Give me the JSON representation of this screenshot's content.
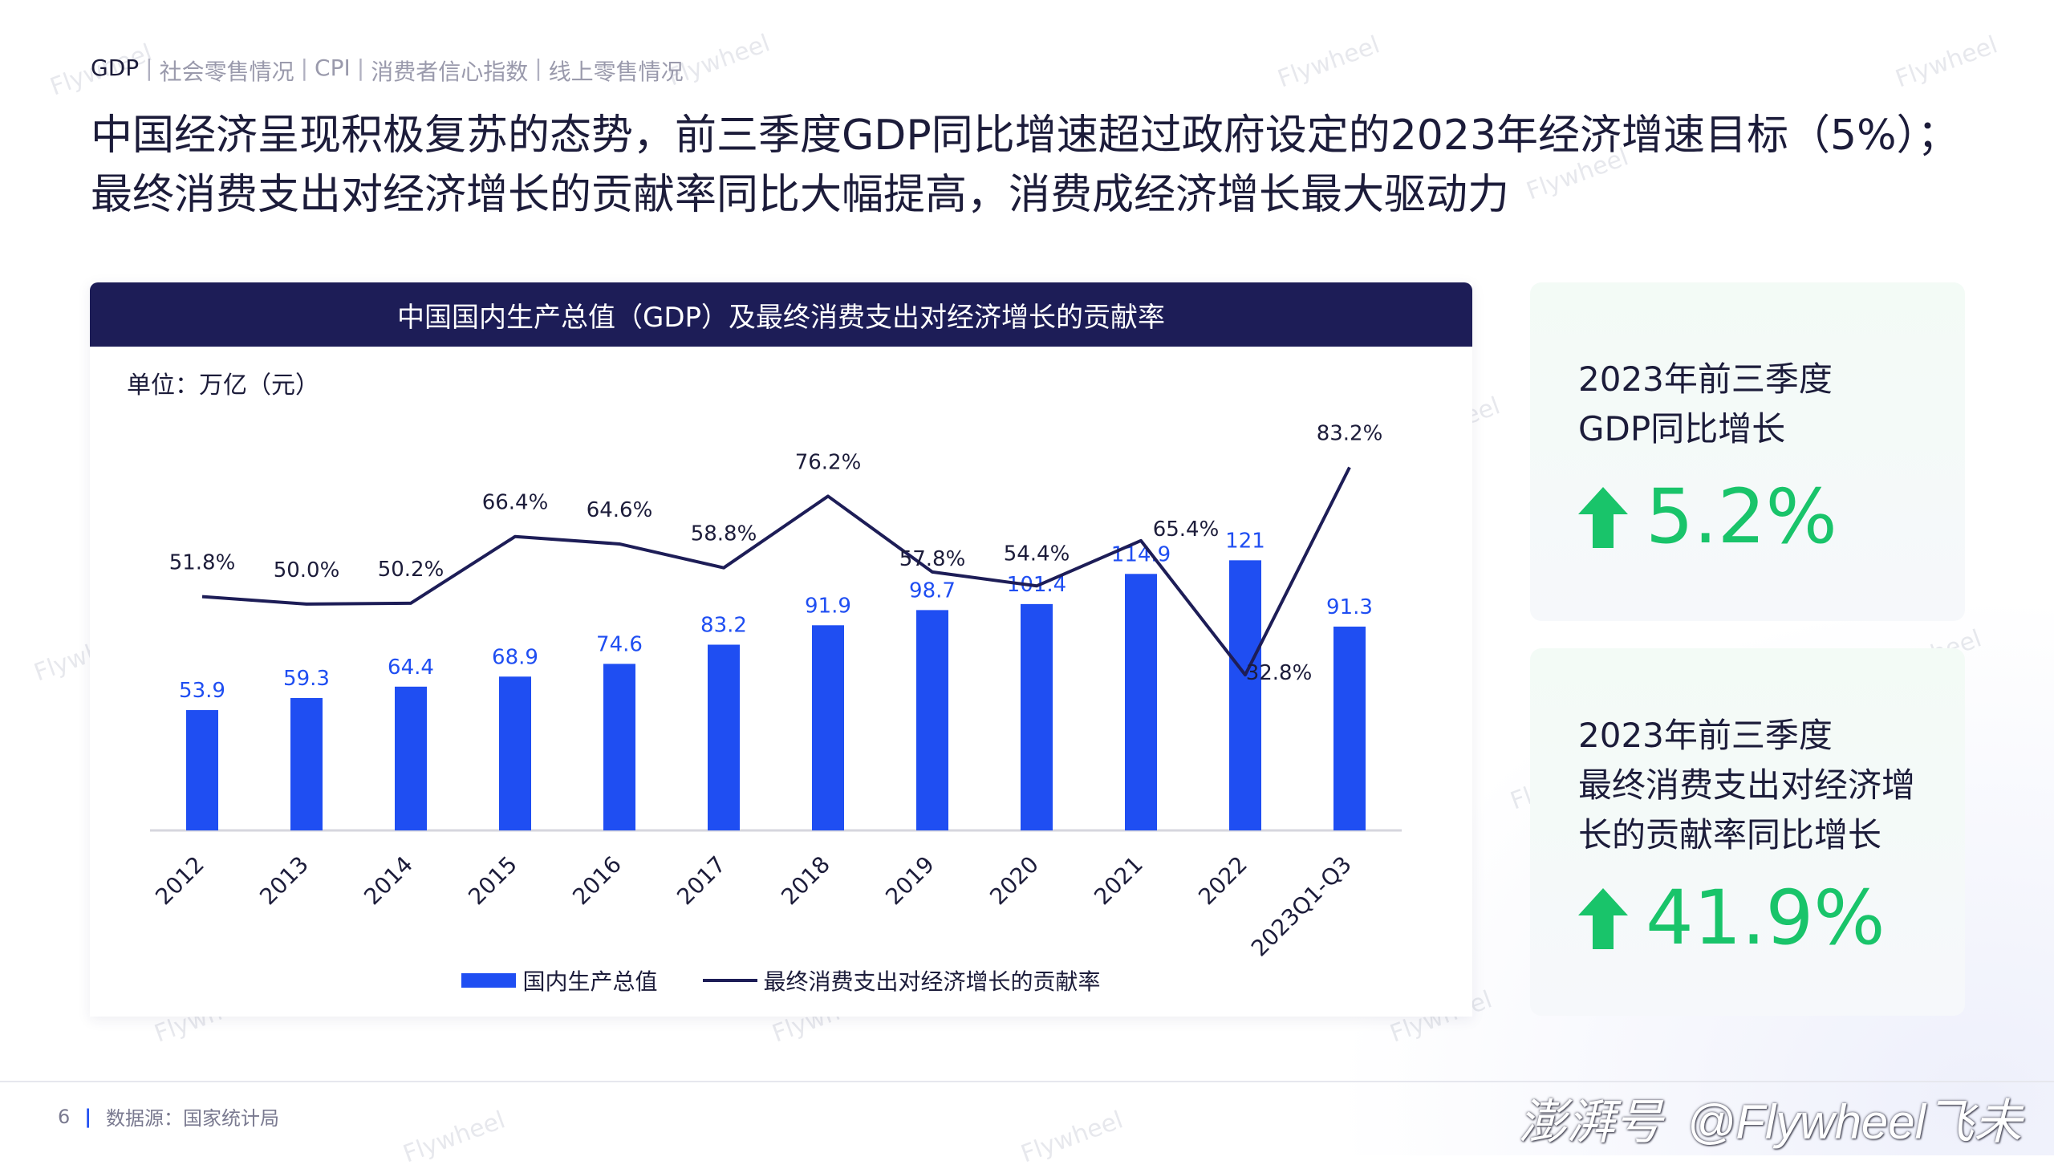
{
  "breadcrumb": [
    "GDP",
    "社会零售情况",
    "CPI",
    "消费者信心指数",
    "线上零售情况"
  ],
  "headline": {
    "line1": "中国经济呈现积极复苏的态势，前三季度GDP同比增速超过政府设定的2023年经济增速目标（5%）；",
    "line2": "最终消费支出对经济增长的贡献率同比大幅提高，消费成经济增长最大驱动力"
  },
  "chart_card": {
    "title": "中国国内生产总值（GDP）及最终消费支出对经济增长的贡献率",
    "unit": "单位：万亿（元）"
  },
  "chart_data": {
    "type": "bar",
    "title": "中国国内生产总值（GDP）及最终消费支出对经济增长的贡献率",
    "unit": "单位：万亿（元）",
    "categories": [
      "2012",
      "2013",
      "2014",
      "2015",
      "2016",
      "2017",
      "2018",
      "2019",
      "2020",
      "2021",
      "2022",
      "2023Q1-Q3"
    ],
    "series": [
      {
        "name": "国内生产总值",
        "type": "bar",
        "color": "#1f4ef2",
        "values": [
          53.9,
          59.3,
          64.4,
          68.9,
          74.6,
          83.2,
          91.9,
          98.7,
          101.4,
          114.9,
          121,
          91.3
        ],
        "labels": [
          "53.9",
          "59.3",
          "64.4",
          "68.9",
          "74.6",
          "83.2",
          "91.9",
          "98.7",
          "101.4",
          "114.9",
          "121",
          "91.3"
        ]
      },
      {
        "name": "最终消费支出对经济增长的贡献率",
        "type": "line",
        "color": "#1d1d57",
        "values": [
          51.8,
          50.0,
          50.2,
          66.4,
          64.6,
          58.8,
          76.2,
          57.8,
          54.4,
          65.4,
          32.8,
          83.2
        ],
        "labels": [
          "51.8%",
          "50.0%",
          "50.2%",
          "66.4%",
          "64.6%",
          "58.8%",
          "76.2%",
          "57.8%",
          "54.4%",
          "65.4%",
          "32.8%",
          "83.2%"
        ]
      }
    ],
    "bar_ylim": [
      0,
      170
    ],
    "line_ylim": [
      -5,
      95
    ],
    "legend_position": "bottom",
    "grid": false
  },
  "kpis": [
    {
      "title_line1": "2023年前三季度",
      "title_line2": "GDP同比增长",
      "title_line3": "",
      "value": "5.2%",
      "icon": "up-arrow-icon"
    },
    {
      "title_line1": "2023年前三季度",
      "title_line2": "最终消费支出对经济增",
      "title_line3": "长的贡献率同比增长",
      "value": "41.9%",
      "icon": "up-arrow-icon"
    }
  ],
  "footer": {
    "page_number": "6",
    "source": "数据源：国家统计局",
    "brand": "@Flywheel飞未",
    "brand_prefix": "澎湃号"
  },
  "watermark": "Flywheel",
  "colors": {
    "navy": "#1d1d57",
    "bar_blue": "#1f4ef2",
    "green": "#19c46a"
  }
}
